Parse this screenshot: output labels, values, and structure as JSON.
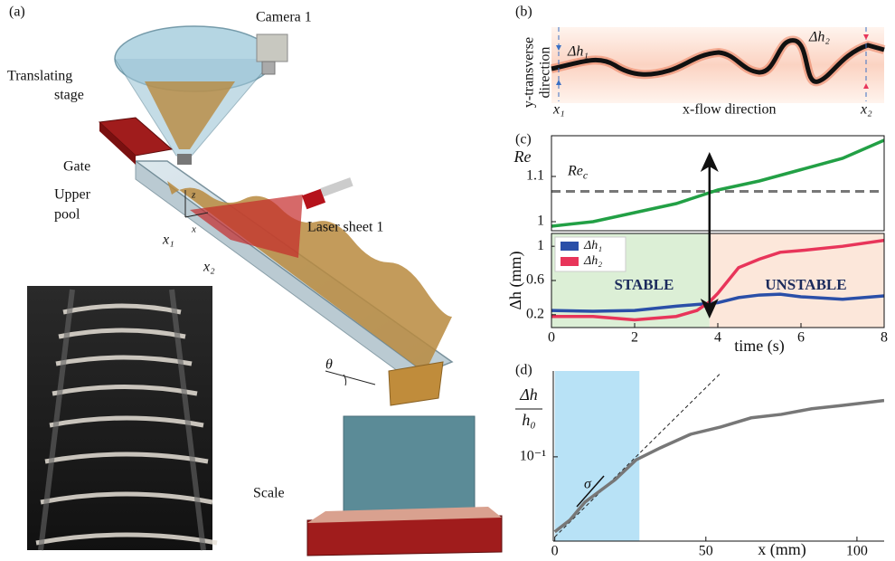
{
  "figure": {
    "panels": {
      "a": "(a)",
      "b": "(b)",
      "c": "(c)",
      "d": "(d)"
    },
    "diagram": {
      "camera": "Camera 1",
      "stage": [
        "Translating",
        "stage"
      ],
      "gate": "Gate",
      "pool": [
        "Upper",
        "pool"
      ],
      "laser": "Laser sheet 1",
      "scale": "Scale",
      "x1": "x₁",
      "x2": "x₂",
      "theta": "θ",
      "z": "z",
      "x": "x"
    },
    "image": {
      "ylabel": [
        "y-transverse",
        "direction"
      ],
      "xlabel": "x-flow direction",
      "dh1": "Δh₁",
      "dh2": "Δh₂",
      "x1": "x₁",
      "x2": "x₂"
    }
  },
  "chart_data": [
    {
      "type": "line",
      "ylabel": "Re",
      "x": [
        0,
        1,
        2,
        3,
        4,
        5,
        6,
        7,
        8
      ],
      "xlim": [
        0,
        8
      ],
      "ylim": [
        0.98,
        1.19
      ],
      "yticks": [
        1,
        1.1
      ],
      "series": [
        {
          "color": "#22a045",
          "values": [
            0.99,
            1.0,
            1.02,
            1.04,
            1.07,
            1.09,
            1.115,
            1.14,
            1.18
          ]
        }
      ],
      "threshold": {
        "value": 1.067,
        "label": {
          "base": "Re",
          "sub": "c"
        }
      }
    },
    {
      "type": "line",
      "xlabel": "time (s)",
      "ylabel": "Δh (mm)",
      "x": [
        0,
        1,
        2,
        3,
        3.5,
        3.8,
        4,
        4.5,
        5,
        5.5,
        6,
        7,
        8
      ],
      "xlim": [
        0,
        8
      ],
      "xticks": [
        0,
        2,
        4,
        6,
        8
      ],
      "ylim": [
        0.05,
        1.15
      ],
      "yticks": [
        0.2,
        0.6,
        1
      ],
      "legend": "upper left",
      "series": [
        {
          "name": "Δh₁",
          "color": "#2a4fa8",
          "values": [
            0.25,
            0.24,
            0.25,
            0.3,
            0.32,
            0.33,
            0.34,
            0.4,
            0.43,
            0.44,
            0.41,
            0.38,
            0.42
          ]
        },
        {
          "name": "Δh₂",
          "color": "#e8355a",
          "values": [
            0.18,
            0.18,
            0.14,
            0.18,
            0.25,
            0.35,
            0.45,
            0.75,
            0.85,
            0.93,
            0.95,
            1.0,
            1.07
          ]
        }
      ],
      "regions": [
        {
          "label": "STABLE",
          "range": [
            0,
            3.8
          ],
          "color": "#dcefd6"
        },
        {
          "label": "UNSTABLE",
          "range": [
            3.8,
            8
          ],
          "color": "#fce7da"
        }
      ]
    },
    {
      "type": "line",
      "log_y": true,
      "xlabel": "x (mm)",
      "ylabel": {
        "num": "Δh",
        "den": "h₀"
      },
      "x": [
        0,
        5,
        10,
        20,
        27,
        35,
        45,
        55,
        65,
        75,
        85,
        95,
        109
      ],
      "xlim": [
        -0.5,
        109
      ],
      "xticks": [
        0,
        50,
        100
      ],
      "ylim": [
        0.0117,
        0.89
      ],
      "yticks": [
        {
          "value": 0.1,
          "label": "10⁻¹"
        }
      ],
      "series": [
        {
          "color": "#777777",
          "values": [
            0.0148,
            0.02,
            0.0316,
            0.056,
            0.093,
            0.126,
            0.178,
            0.214,
            0.27,
            0.295,
            0.34,
            0.37,
            0.42
          ]
        }
      ],
      "reference_line": {
        "x": [
          0,
          55
        ],
        "values": [
          0.013,
          0.85
        ]
      },
      "shaded_region": [
        0,
        28
      ],
      "annotation": "σ"
    }
  ]
}
